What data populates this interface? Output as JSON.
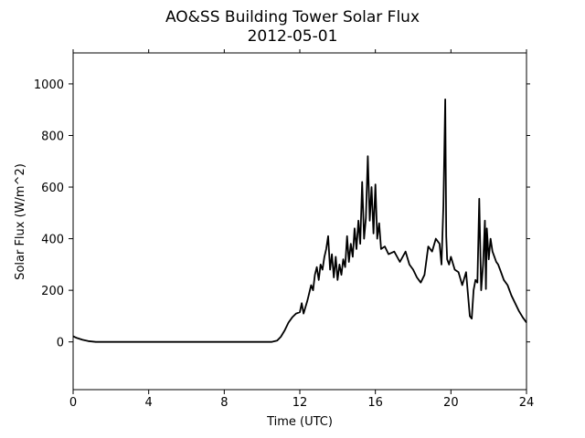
{
  "chart_data": {
    "type": "line",
    "title": "AO&SS Building Tower Solar Flux",
    "subtitle": "2012-05-01",
    "xlabel": "Time (UTC)",
    "ylabel": "Solar Flux (W/m^2)",
    "xlim": [
      0,
      24
    ],
    "ylim": [
      -185,
      1120
    ],
    "xticks": [
      0,
      4,
      8,
      12,
      16,
      20,
      24
    ],
    "yticks": [
      0,
      200,
      400,
      600,
      800,
      1000
    ],
    "grid": false,
    "legend": "none",
    "line_color": "#000000",
    "series": [
      {
        "x": [
          0,
          0.2,
          0.5,
          0.8,
          1.2,
          2,
          4,
          6,
          8,
          9,
          10,
          10.5,
          10.8,
          11,
          11.2,
          11.4,
          11.6,
          11.8,
          12,
          12.1,
          12.2,
          12.4,
          12.6,
          12.7,
          12.8,
          12.9,
          13,
          13.1,
          13.2,
          13.3,
          13.4,
          13.5,
          13.6,
          13.7,
          13.8,
          13.9,
          14,
          14.1,
          14.2,
          14.3,
          14.4,
          14.5,
          14.6,
          14.7,
          14.8,
          14.9,
          15,
          15.1,
          15.2,
          15.3,
          15.4,
          15.5,
          15.6,
          15.7,
          15.8,
          15.9,
          16,
          16.1,
          16.2,
          16.3,
          16.5,
          16.7,
          17,
          17.3,
          17.6,
          17.8,
          18,
          18.2,
          18.4,
          18.6,
          18.8,
          19,
          19.2,
          19.4,
          19.5,
          19.6,
          19.7,
          19.75,
          19.8,
          19.9,
          20,
          20.2,
          20.4,
          20.6,
          20.8,
          21,
          21.1,
          21.2,
          21.3,
          21.4,
          21.5,
          21.6,
          21.7,
          21.8,
          21.85,
          21.9,
          22,
          22.1,
          22.2,
          22.3,
          22.4,
          22.5,
          22.6,
          22.8,
          23,
          23.2,
          23.4,
          23.6,
          23.8,
          24
        ],
        "y": [
          22,
          15,
          8,
          3,
          0,
          0,
          0,
          0,
          0,
          0,
          0,
          0,
          5,
          20,
          45,
          75,
          95,
          110,
          115,
          150,
          110,
          160,
          220,
          200,
          260,
          290,
          240,
          300,
          280,
          330,
          360,
          410,
          280,
          340,
          250,
          330,
          240,
          300,
          260,
          320,
          290,
          410,
          310,
          380,
          330,
          440,
          360,
          470,
          380,
          620,
          400,
          480,
          720,
          470,
          600,
          420,
          610,
          400,
          460,
          360,
          370,
          340,
          350,
          310,
          350,
          300,
          280,
          250,
          230,
          260,
          370,
          350,
          400,
          380,
          300,
          530,
          940,
          410,
          320,
          300,
          330,
          280,
          270,
          220,
          270,
          100,
          90,
          200,
          240,
          230,
          555,
          200,
          300,
          470,
          205,
          440,
          320,
          400,
          350,
          330,
          310,
          300,
          280,
          240,
          220,
          180,
          150,
          120,
          95,
          75
        ]
      }
    ]
  }
}
